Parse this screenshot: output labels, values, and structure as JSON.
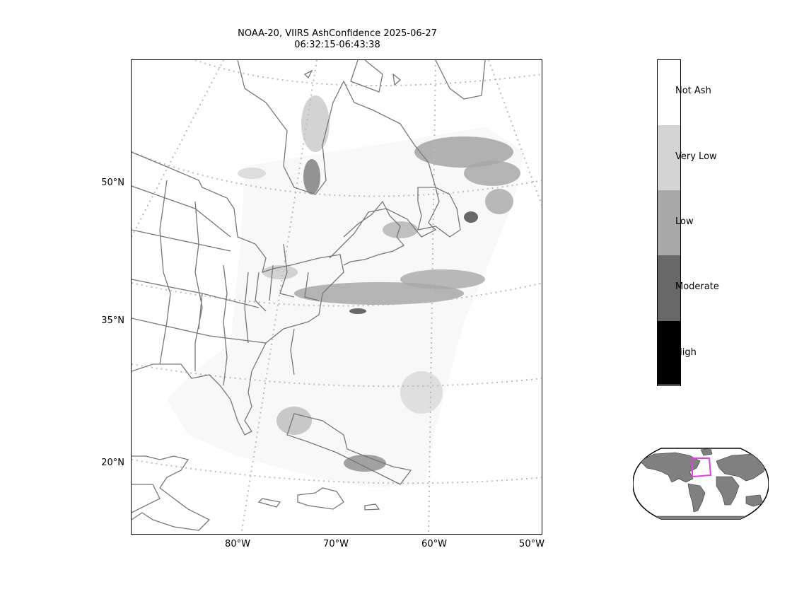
{
  "title": {
    "line1": "NOAA-20, VIIRS AshConfidence 2025-06-27",
    "line2": "06:32:15-06:43:38"
  },
  "map": {
    "lat_labels": [
      "50°N",
      "35°N",
      "20°N"
    ],
    "lon_labels": [
      "80°W",
      "70°W",
      "60°W",
      "50°W"
    ],
    "gridlines": "dotted",
    "coastline_color": "#777777",
    "grid_color": "#bbbbbb"
  },
  "colorbar": {
    "categories": [
      {
        "label": "Not Ash",
        "color": "#ffffff"
      },
      {
        "label": "Very Low",
        "color": "#d4d4d4"
      },
      {
        "label": "Low",
        "color": "#a8a8a8"
      },
      {
        "label": "Moderate",
        "color": "#686868"
      },
      {
        "label": "High",
        "color": "#000000"
      }
    ]
  },
  "inset": {
    "land_color": "#808080",
    "box_color": "#e040e0"
  }
}
